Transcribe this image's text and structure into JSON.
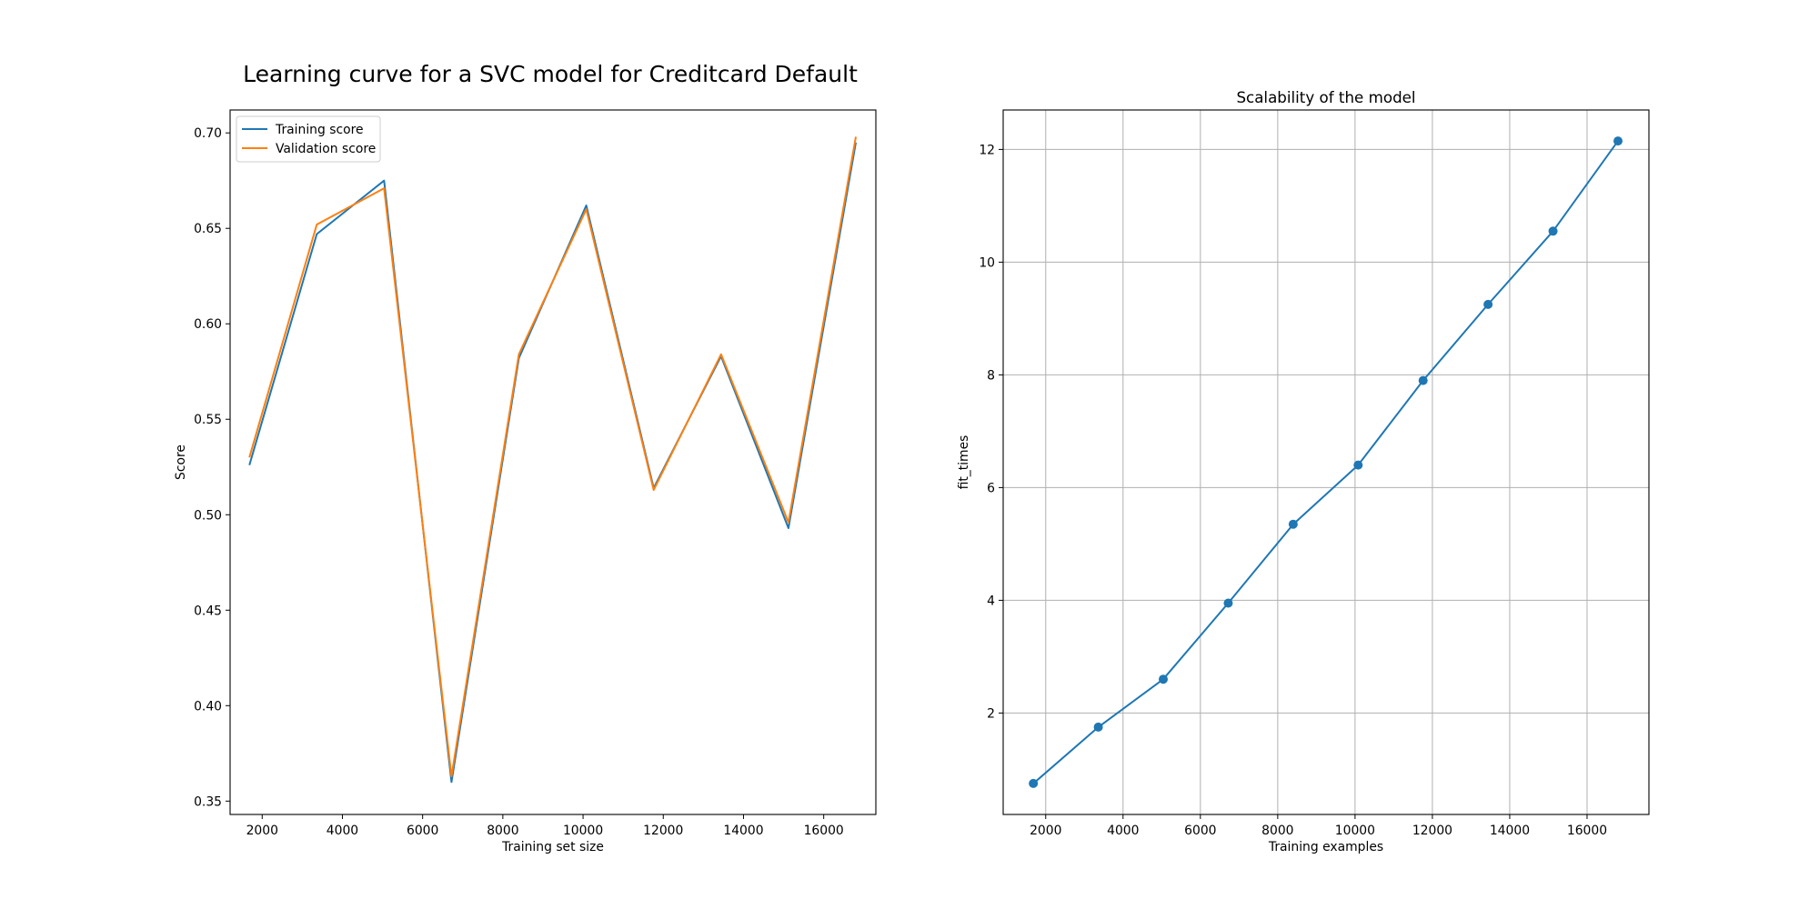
{
  "figure": {
    "suptitle": "Learning curve for a SVC model for Creditcard Default"
  },
  "chart_data": [
    {
      "type": "line",
      "title": "",
      "xlabel": "Training set size",
      "ylabel": "Score",
      "xlim": [
        1200,
        17300
      ],
      "ylim": [
        0.343,
        0.712
      ],
      "xticks": [
        2000,
        4000,
        6000,
        8000,
        10000,
        12000,
        14000,
        16000
      ],
      "yticks": [
        0.35,
        0.4,
        0.45,
        0.5,
        0.55,
        0.6,
        0.65,
        0.7
      ],
      "ytick_decimals": 2,
      "grid": false,
      "legend": "upper-left",
      "x": [
        1680,
        3360,
        5040,
        6720,
        8400,
        10080,
        11760,
        13440,
        15120,
        16800
      ],
      "series": [
        {
          "name": "Training score",
          "color": "#1f77b4",
          "values": [
            0.526,
            0.647,
            0.675,
            0.36,
            0.582,
            0.662,
            0.514,
            0.583,
            0.493,
            0.695
          ]
        },
        {
          "name": "Validation score",
          "color": "#ff7f0e",
          "values": [
            0.53,
            0.652,
            0.671,
            0.363,
            0.584,
            0.66,
            0.513,
            0.584,
            0.496,
            0.698
          ]
        }
      ]
    },
    {
      "type": "line",
      "title": "Scalability of the model",
      "xlabel": "Training examples",
      "ylabel": "fit_times",
      "xlim": [
        900,
        17600
      ],
      "ylim": [
        0.2,
        12.7
      ],
      "xticks": [
        2000,
        4000,
        6000,
        8000,
        10000,
        12000,
        14000,
        16000
      ],
      "yticks": [
        2,
        4,
        6,
        8,
        10,
        12
      ],
      "ytick_decimals": 0,
      "grid": true,
      "markers": true,
      "x": [
        1680,
        3360,
        5040,
        6720,
        8400,
        10080,
        11760,
        13440,
        15120,
        16800
      ],
      "series": [
        {
          "color": "#1f77b4",
          "values": [
            0.75,
            1.75,
            2.6,
            3.95,
            5.35,
            6.4,
            7.9,
            9.25,
            10.55,
            12.15
          ]
        }
      ]
    }
  ]
}
